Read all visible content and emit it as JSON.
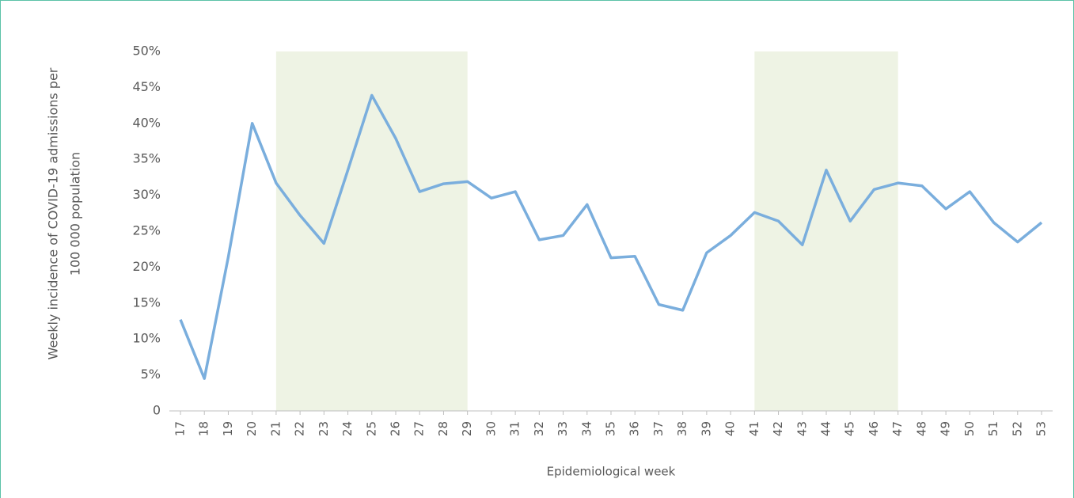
{
  "chart_data": {
    "type": "line",
    "x_label": "Epidemiological week",
    "y_label": [
      "Weekly incidence of COVID-19 admissions per",
      "100 000 population"
    ],
    "x": [
      17,
      18,
      19,
      20,
      21,
      22,
      23,
      24,
      25,
      26,
      27,
      28,
      29,
      30,
      31,
      32,
      33,
      34,
      35,
      36,
      37,
      38,
      39,
      40,
      41,
      42,
      43,
      44,
      45,
      46,
      47,
      48,
      49,
      50,
      51,
      52,
      53
    ],
    "values": [
      12.7,
      4.5,
      21.4,
      40.0,
      31.7,
      27.2,
      23.3,
      33.5,
      43.9,
      37.9,
      30.5,
      31.6,
      31.9,
      29.6,
      30.5,
      23.8,
      24.4,
      28.7,
      21.3,
      21.5,
      14.8,
      14.0,
      22.0,
      24.4,
      27.6,
      26.4,
      23.1,
      33.5,
      26.4,
      30.8,
      31.7,
      31.3,
      28.1,
      30.5,
      26.2,
      23.5,
      26.2
    ],
    "color": "#7aaedd",
    "xlim": [
      17,
      53
    ],
    "xticks": [
      17,
      18,
      19,
      20,
      21,
      22,
      23,
      24,
      25,
      26,
      27,
      28,
      29,
      30,
      31,
      32,
      33,
      34,
      35,
      36,
      37,
      38,
      39,
      40,
      41,
      42,
      43,
      44,
      45,
      46,
      47,
      48,
      49,
      50,
      51,
      52,
      53
    ],
    "ylim": [
      0,
      50
    ],
    "yticks": [
      0,
      {
        "value": 5,
        "label": "5%"
      },
      {
        "value": 10,
        "label": "10%"
      },
      {
        "value": 15,
        "label": "15%"
      },
      {
        "value": 20,
        "label": "20%"
      },
      {
        "value": 25,
        "label": "25%"
      },
      {
        "value": 30,
        "label": "30%"
      },
      {
        "value": 35,
        "label": "35%"
      },
      {
        "value": 40,
        "label": "40%"
      },
      {
        "value": 45,
        "label": "45%"
      },
      {
        "value": 50,
        "label": "50%"
      }
    ],
    "shaded_ranges": [
      [
        21,
        29
      ],
      [
        41,
        47
      ]
    ],
    "shade_color": "#eef3e4",
    "grid": false
  }
}
